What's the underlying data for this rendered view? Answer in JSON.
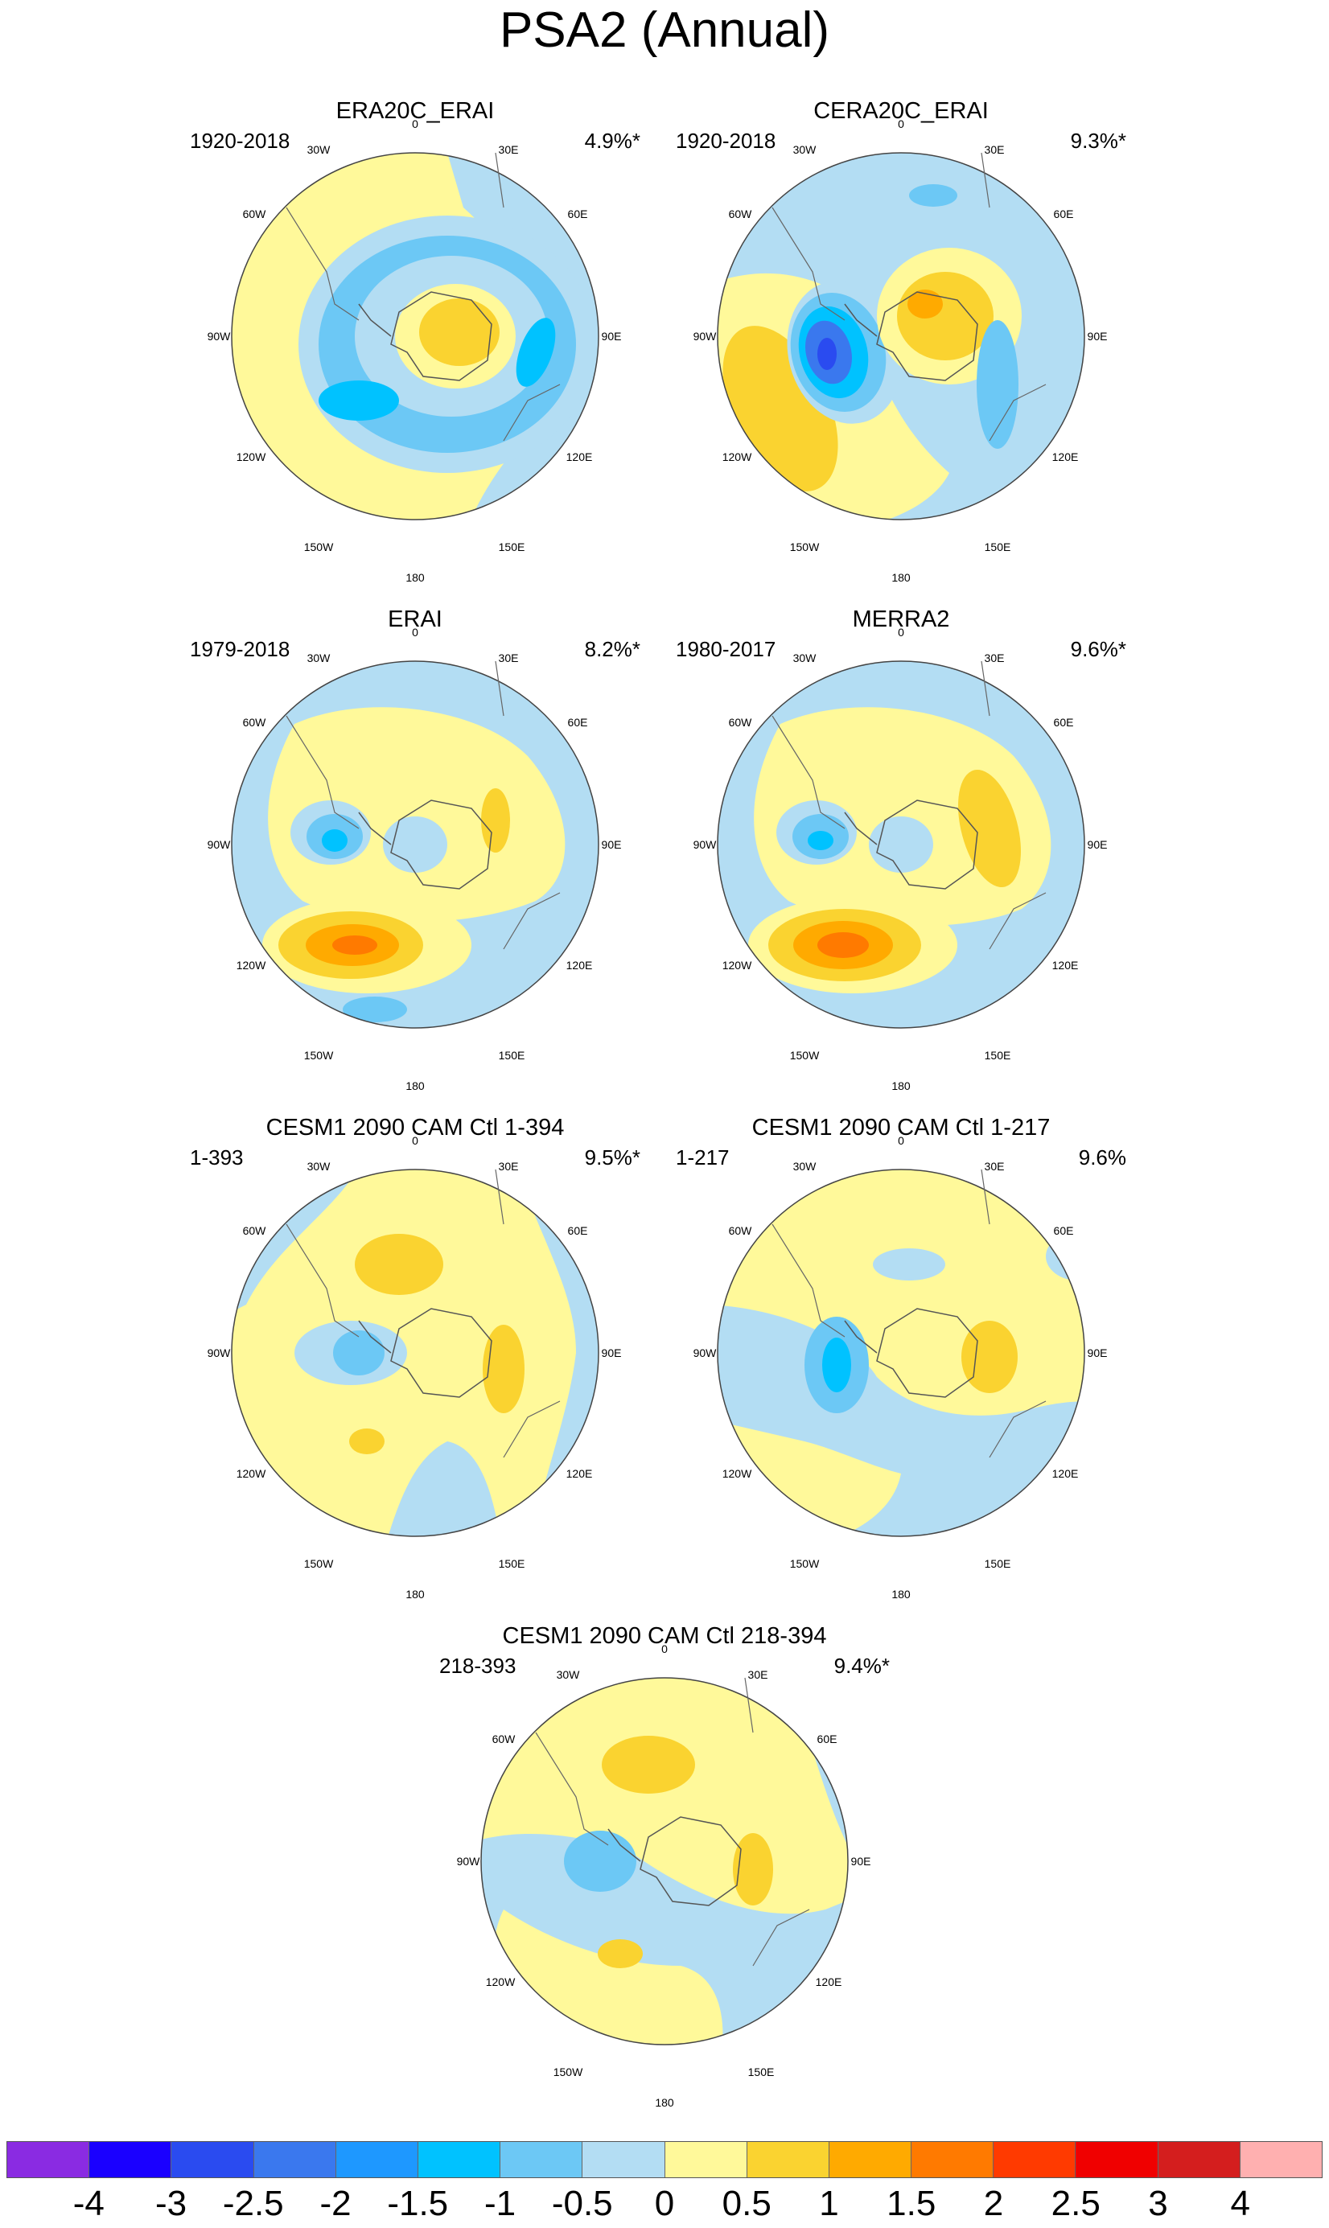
{
  "title": "PSA2 (Annual)",
  "colorbar": {
    "colors": [
      "#8a2be2",
      "#1a00ff",
      "#2a4bf0",
      "#3a78ee",
      "#1e98ff",
      "#00c2ff",
      "#6cc8f5",
      "#b3ddf3",
      "#fff99a",
      "#fad330",
      "#ffaa00",
      "#ff7a00",
      "#ff3a00",
      "#f00000",
      "#d41e1e",
      "#ffb0b0"
    ],
    "ticks": [
      "-4",
      "-3",
      "-2.5",
      "-2",
      "-1.5",
      "-1",
      "-0.5",
      "0",
      "0.5",
      "1",
      "1.5",
      "2",
      "2.5",
      "3",
      "4"
    ]
  },
  "panels": [
    {
      "title": "ERA20C_ERAI",
      "period": "1920-2018",
      "percent": "4.9%*"
    },
    {
      "title": "CERA20C_ERAI",
      "period": "1920-2018",
      "percent": "9.3%*"
    },
    {
      "title": "ERAI",
      "period": "1979-2018",
      "percent": "8.2%*"
    },
    {
      "title": "MERRA2",
      "period": "1980-2017",
      "percent": "9.6%*"
    },
    {
      "title": "CESM1 2090 CAM Ctl 1-394",
      "period": "1-393",
      "percent": "9.5%*"
    },
    {
      "title": "CESM1 2090 CAM Ctl 1-217",
      "period": "1-217",
      "percent": "9.6%"
    },
    {
      "title": "CESM1 2090 CAM Ctl 218-394",
      "period": "218-393",
      "percent": "9.4%*"
    }
  ],
  "lon_labels": {
    "l0": "0",
    "l30e": "30E",
    "l60e": "60E",
    "l90e": "90E",
    "l120e": "120E",
    "l150e": "150E",
    "l180": "180",
    "l150w": "150W",
    "l120w": "120W",
    "l90w": "90W",
    "l60w": "60W",
    "l30w": "30W"
  }
}
